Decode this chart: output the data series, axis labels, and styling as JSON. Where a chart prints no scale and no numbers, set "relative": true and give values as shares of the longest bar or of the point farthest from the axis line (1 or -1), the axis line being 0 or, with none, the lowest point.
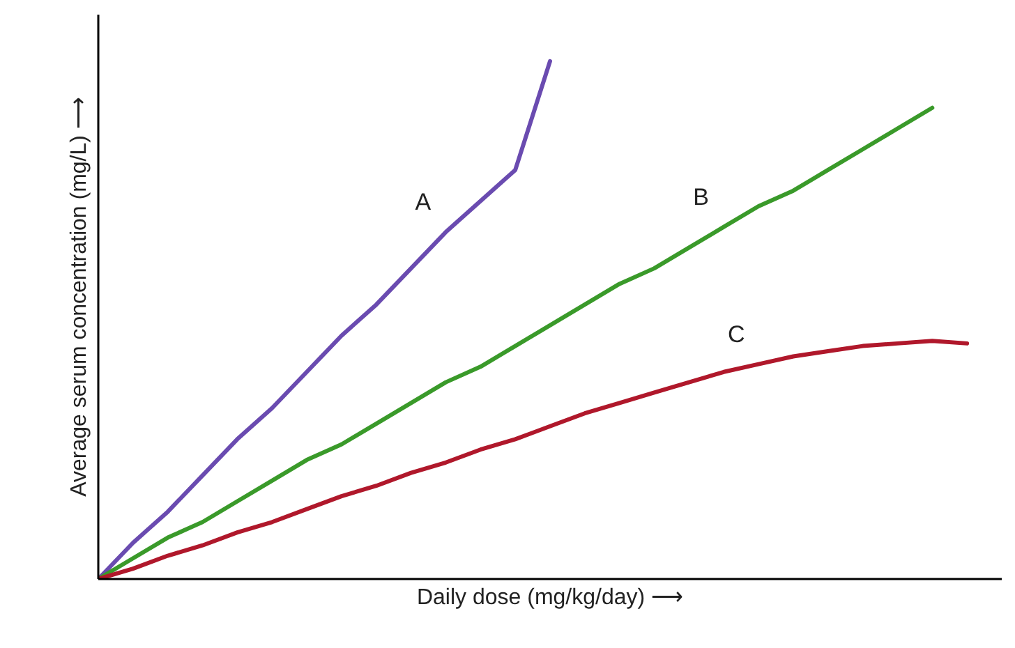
{
  "chart_data": {
    "type": "line",
    "relative": true,
    "xlabel": "Daily dose (mg/kg/day) ⟶",
    "ylabel": "Average serum concentration (mg/L) ⟶",
    "categories": [
      null,
      null,
      null,
      null,
      null,
      null,
      null,
      null,
      null,
      null,
      null,
      null,
      null,
      null,
      null,
      null,
      null,
      null,
      null,
      null,
      null,
      null,
      null,
      null,
      null,
      null
    ],
    "series": [
      {
        "name": "A",
        "color": "#6a4bb0",
        "values": [
          0,
          0.07,
          0.13,
          0.2,
          0.27,
          0.33,
          0.4,
          0.47,
          0.53,
          0.6,
          0.67,
          0.73,
          0.79,
          1.0,
          null,
          null,
          null,
          null,
          null,
          null,
          null,
          null,
          null,
          null,
          null,
          null
        ]
      },
      {
        "name": "B",
        "color": "#3a9a2a",
        "values": [
          0,
          0.04,
          0.08,
          0.11,
          0.15,
          0.19,
          0.23,
          0.26,
          0.3,
          0.34,
          0.38,
          0.41,
          0.45,
          0.49,
          0.53,
          0.57,
          0.6,
          0.64,
          0.68,
          0.72,
          0.75,
          0.79,
          0.83,
          0.87,
          0.91,
          null
        ]
      },
      {
        "name": "C",
        "color": "#b0182b",
        "values": [
          0,
          0.02,
          0.045,
          0.065,
          0.09,
          0.11,
          0.135,
          0.16,
          0.18,
          0.205,
          0.225,
          0.25,
          0.27,
          0.295,
          0.32,
          0.34,
          0.36,
          0.38,
          0.4,
          0.415,
          0.43,
          0.44,
          0.45,
          0.455,
          0.46,
          0.455
        ]
      }
    ],
    "marker": "none",
    "line_style": "solid"
  }
}
